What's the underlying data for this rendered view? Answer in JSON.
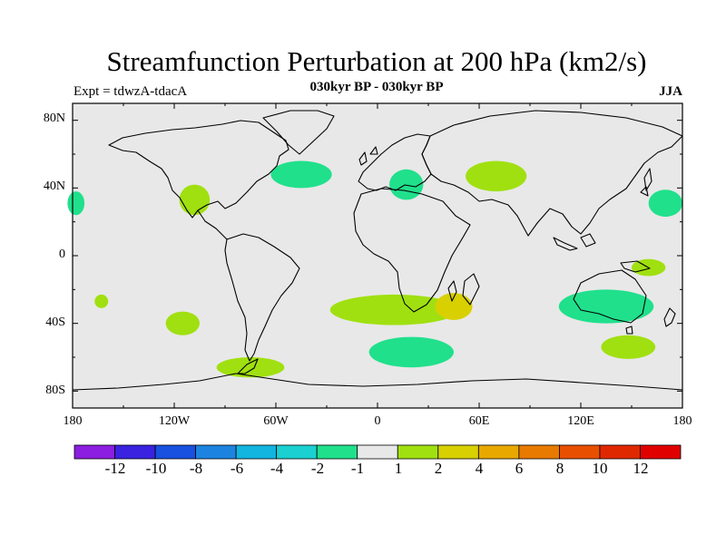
{
  "title": "Streamfunction Perturbation at 200 hPa (km2/s)",
  "subtitle": "030kyr BP - 030kyr BP",
  "experiment": "Expt = tdwzA-tdacA",
  "season": "JJA",
  "map": {
    "projection": "cylindrical-equidistant",
    "extent": {
      "lon": [
        -180,
        180
      ],
      "lat": [
        -90,
        90
      ]
    },
    "background_color": "#e8e8e8",
    "y_ticks": [
      "80N",
      "40N",
      "0",
      "40S",
      "80S"
    ],
    "x_ticks": [
      "180",
      "120W",
      "60W",
      "0",
      "60E",
      "120E",
      "180"
    ],
    "anomaly_regions": [
      {
        "name": "n-atlantic",
        "lon": -45,
        "lat": 48,
        "rlon": 18,
        "rlat": 8,
        "level": "-2"
      },
      {
        "name": "europe",
        "lon": 17,
        "lat": 42,
        "rlon": 10,
        "rlat": 9,
        "level": "-2"
      },
      {
        "name": "c-asia",
        "lon": 70,
        "lat": 47,
        "rlon": 18,
        "rlat": 9,
        "level": "1"
      },
      {
        "name": "mexico",
        "lon": -108,
        "lat": 33,
        "rlon": 9,
        "rlat": 9,
        "level": "1"
      },
      {
        "name": "ne-pacific-w",
        "lon": -178,
        "lat": 31,
        "rlon": 5,
        "rlat": 7,
        "level": "-2"
      },
      {
        "name": "nw-pacific",
        "lon": 170,
        "lat": 31,
        "rlon": 10,
        "rlat": 8,
        "level": "-2"
      },
      {
        "name": "s-atlantic-indian",
        "lon": 10,
        "lat": -32,
        "rlon": 38,
        "rlat": 9,
        "level": "1"
      },
      {
        "name": "madagascar",
        "lon": 45,
        "lat": -30,
        "rlon": 11,
        "rlat": 8,
        "level": "2"
      },
      {
        "name": "australia",
        "lon": 135,
        "lat": -30,
        "rlon": 28,
        "rlat": 10,
        "level": "-2"
      },
      {
        "name": "nw-australia",
        "lon": 160,
        "lat": -7,
        "rlon": 10,
        "rlat": 5,
        "level": "1"
      },
      {
        "name": "south-indian",
        "lon": 20,
        "lat": -57,
        "rlon": 25,
        "rlat": 9,
        "level": "-2"
      },
      {
        "name": "sw-pacific",
        "lon": 148,
        "lat": -54,
        "rlon": 16,
        "rlat": 7,
        "level": "1"
      },
      {
        "name": "se-pacific",
        "lon": -115,
        "lat": -40,
        "rlon": 10,
        "rlat": 7,
        "level": "1"
      },
      {
        "name": "s-pacific-small",
        "lon": -163,
        "lat": -27,
        "rlon": 4,
        "rlat": 4,
        "level": "1"
      },
      {
        "name": "drake-passage",
        "lon": -75,
        "lat": -66,
        "rlon": 20,
        "rlat": 6,
        "level": "1"
      }
    ]
  },
  "colorbar": {
    "labels": [
      "-12",
      "-10",
      "-8",
      "-6",
      "-4",
      "-2",
      "-1",
      "1",
      "2",
      "4",
      "6",
      "8",
      "10",
      "12"
    ],
    "colors": [
      "#8b1ee0",
      "#3a22e0",
      "#1850e0",
      "#1c84e0",
      "#12b4e0",
      "#1ad0d0",
      "#20e08c",
      "#e8e8e8",
      "#a0e010",
      "#d8d000",
      "#e8a800",
      "#e87a00",
      "#e85000",
      "#e02800",
      "#e00000"
    ],
    "level_colors": {
      "-2": "#20e08c",
      "1": "#a0e010",
      "2": "#d8d000"
    }
  }
}
